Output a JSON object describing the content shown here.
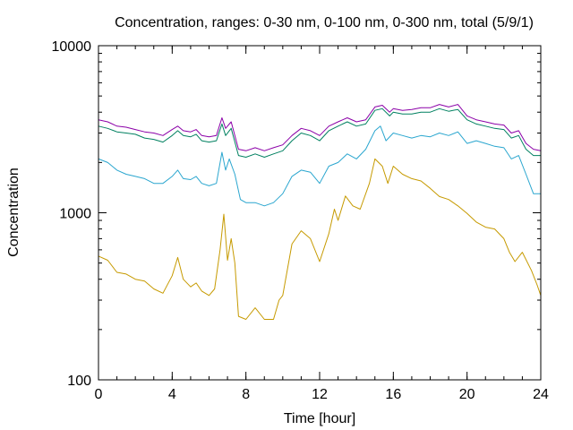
{
  "chart_data": {
    "type": "line",
    "title": "Concentration, ranges: 0-30 nm, 0-100 nm, 0-300 nm, total (5/9/1)",
    "xlabel": "Time [hour]",
    "ylabel": "Concentration",
    "xlim": [
      0,
      24
    ],
    "ylim": [
      100,
      10000
    ],
    "yscale": "log",
    "grid": false,
    "legend": "none",
    "x_ticks": [
      {
        "v": 0,
        "label": "0"
      },
      {
        "v": 4,
        "label": "4"
      },
      {
        "v": 8,
        "label": "8"
      },
      {
        "v": 12,
        "label": "12"
      },
      {
        "v": 16,
        "label": "16"
      },
      {
        "v": 20,
        "label": "20"
      },
      {
        "v": 24,
        "label": "24"
      }
    ],
    "y_ticks": [
      {
        "v": 100,
        "label": "100"
      },
      {
        "v": 1000,
        "label": "1000"
      },
      {
        "v": 10000,
        "label": "10000"
      }
    ],
    "x_minor_step": 1,
    "series": [
      {
        "color": "#c69a00",
        "points": [
          [
            0,
            550
          ],
          [
            0.5,
            520
          ],
          [
            1,
            440
          ],
          [
            1.5,
            430
          ],
          [
            2,
            400
          ],
          [
            2.5,
            390
          ],
          [
            3,
            350
          ],
          [
            3.5,
            330
          ],
          [
            4,
            420
          ],
          [
            4.3,
            540
          ],
          [
            4.6,
            400
          ],
          [
            5,
            360
          ],
          [
            5.3,
            380
          ],
          [
            5.6,
            340
          ],
          [
            6,
            320
          ],
          [
            6.3,
            350
          ],
          [
            6.6,
            600
          ],
          [
            6.8,
            980
          ],
          [
            7,
            520
          ],
          [
            7.2,
            700
          ],
          [
            7.4,
            500
          ],
          [
            7.6,
            240
          ],
          [
            8,
            230
          ],
          [
            8.5,
            270
          ],
          [
            9,
            230
          ],
          [
            9.5,
            230
          ],
          [
            9.8,
            300
          ],
          [
            10,
            320
          ],
          [
            10.5,
            650
          ],
          [
            11,
            780
          ],
          [
            11.5,
            700
          ],
          [
            12,
            510
          ],
          [
            12.5,
            750
          ],
          [
            12.8,
            1050
          ],
          [
            13,
            900
          ],
          [
            13.4,
            1260
          ],
          [
            13.8,
            1100
          ],
          [
            14.2,
            1050
          ],
          [
            14.7,
            1500
          ],
          [
            15,
            2100
          ],
          [
            15.4,
            1900
          ],
          [
            15.7,
            1500
          ],
          [
            16,
            1900
          ],
          [
            16.5,
            1700
          ],
          [
            17,
            1600
          ],
          [
            17.5,
            1550
          ],
          [
            18,
            1400
          ],
          [
            18.5,
            1250
          ],
          [
            19,
            1200
          ],
          [
            19.5,
            1100
          ],
          [
            20,
            990
          ],
          [
            20.5,
            880
          ],
          [
            21,
            820
          ],
          [
            21.5,
            800
          ],
          [
            22,
            700
          ],
          [
            22.3,
            580
          ],
          [
            22.6,
            510
          ],
          [
            23,
            580
          ],
          [
            23.5,
            450
          ],
          [
            23.8,
            370
          ],
          [
            24,
            320
          ]
        ]
      },
      {
        "color": "#2aa6cf",
        "points": [
          [
            0,
            2100
          ],
          [
            0.5,
            2000
          ],
          [
            1,
            1800
          ],
          [
            1.5,
            1700
          ],
          [
            2,
            1650
          ],
          [
            2.5,
            1600
          ],
          [
            3,
            1500
          ],
          [
            3.5,
            1500
          ],
          [
            4,
            1650
          ],
          [
            4.3,
            1800
          ],
          [
            4.6,
            1600
          ],
          [
            5,
            1580
          ],
          [
            5.3,
            1650
          ],
          [
            5.6,
            1500
          ],
          [
            6,
            1450
          ],
          [
            6.4,
            1500
          ],
          [
            6.7,
            2300
          ],
          [
            6.9,
            1800
          ],
          [
            7.1,
            2100
          ],
          [
            7.4,
            1700
          ],
          [
            7.7,
            1200
          ],
          [
            8,
            1150
          ],
          [
            8.5,
            1150
          ],
          [
            9,
            1100
          ],
          [
            9.5,
            1150
          ],
          [
            10,
            1300
          ],
          [
            10.5,
            1650
          ],
          [
            11,
            1800
          ],
          [
            11.5,
            1750
          ],
          [
            12,
            1500
          ],
          [
            12.5,
            1900
          ],
          [
            13,
            2000
          ],
          [
            13.5,
            2250
          ],
          [
            14,
            2100
          ],
          [
            14.5,
            2400
          ],
          [
            15,
            3100
          ],
          [
            15.3,
            3300
          ],
          [
            15.6,
            2700
          ],
          [
            16,
            3000
          ],
          [
            16.5,
            2900
          ],
          [
            17,
            2800
          ],
          [
            17.5,
            2900
          ],
          [
            18,
            2850
          ],
          [
            18.5,
            3000
          ],
          [
            19,
            2900
          ],
          [
            19.5,
            3050
          ],
          [
            20,
            2600
          ],
          [
            20.5,
            2700
          ],
          [
            21,
            2600
          ],
          [
            21.5,
            2500
          ],
          [
            22,
            2450
          ],
          [
            22.4,
            2100
          ],
          [
            22.8,
            2200
          ],
          [
            23.2,
            1700
          ],
          [
            23.6,
            1300
          ],
          [
            24,
            1300
          ]
        ]
      },
      {
        "color": "#008060",
        "points": [
          [
            0,
            3300
          ],
          [
            0.5,
            3200
          ],
          [
            1,
            3050
          ],
          [
            1.5,
            3000
          ],
          [
            2,
            2950
          ],
          [
            2.5,
            2800
          ],
          [
            3,
            2750
          ],
          [
            3.5,
            2650
          ],
          [
            4,
            2900
          ],
          [
            4.3,
            3100
          ],
          [
            4.6,
            2900
          ],
          [
            5,
            2850
          ],
          [
            5.3,
            2950
          ],
          [
            5.6,
            2700
          ],
          [
            6,
            2650
          ],
          [
            6.4,
            2700
          ],
          [
            6.7,
            3400
          ],
          [
            6.9,
            2900
          ],
          [
            7.2,
            3200
          ],
          [
            7.6,
            2200
          ],
          [
            8,
            2150
          ],
          [
            8.5,
            2250
          ],
          [
            9,
            2150
          ],
          [
            9.5,
            2250
          ],
          [
            10,
            2350
          ],
          [
            10.5,
            2700
          ],
          [
            11,
            3000
          ],
          [
            11.5,
            2900
          ],
          [
            12,
            2700
          ],
          [
            12.5,
            3100
          ],
          [
            13,
            3300
          ],
          [
            13.5,
            3500
          ],
          [
            14,
            3300
          ],
          [
            14.5,
            3400
          ],
          [
            15,
            4100
          ],
          [
            15.4,
            4200
          ],
          [
            15.8,
            3800
          ],
          [
            16,
            4000
          ],
          [
            16.5,
            3900
          ],
          [
            17,
            3900
          ],
          [
            17.5,
            4000
          ],
          [
            18,
            4000
          ],
          [
            18.5,
            4200
          ],
          [
            19,
            4050
          ],
          [
            19.5,
            4150
          ],
          [
            20,
            3600
          ],
          [
            20.5,
            3400
          ],
          [
            21,
            3300
          ],
          [
            21.5,
            3200
          ],
          [
            22,
            3150
          ],
          [
            22.4,
            2800
          ],
          [
            22.8,
            2900
          ],
          [
            23.2,
            2400
          ],
          [
            23.6,
            2200
          ],
          [
            24,
            2200
          ]
        ]
      },
      {
        "color": "#8b00a8",
        "points": [
          [
            0,
            3600
          ],
          [
            0.5,
            3500
          ],
          [
            1,
            3300
          ],
          [
            1.5,
            3250
          ],
          [
            2,
            3150
          ],
          [
            2.5,
            3050
          ],
          [
            3,
            3000
          ],
          [
            3.5,
            2900
          ],
          [
            4,
            3150
          ],
          [
            4.3,
            3300
          ],
          [
            4.6,
            3100
          ],
          [
            5,
            3050
          ],
          [
            5.3,
            3150
          ],
          [
            5.6,
            2900
          ],
          [
            6,
            2850
          ],
          [
            6.4,
            2900
          ],
          [
            6.7,
            3700
          ],
          [
            6.9,
            3200
          ],
          [
            7.2,
            3500
          ],
          [
            7.6,
            2400
          ],
          [
            8,
            2350
          ],
          [
            8.5,
            2450
          ],
          [
            9,
            2350
          ],
          [
            9.5,
            2450
          ],
          [
            10,
            2550
          ],
          [
            10.5,
            2900
          ],
          [
            11,
            3200
          ],
          [
            11.5,
            3100
          ],
          [
            12,
            2900
          ],
          [
            12.5,
            3300
          ],
          [
            13,
            3500
          ],
          [
            13.5,
            3700
          ],
          [
            14,
            3500
          ],
          [
            14.5,
            3600
          ],
          [
            15,
            4300
          ],
          [
            15.4,
            4400
          ],
          [
            15.8,
            4000
          ],
          [
            16,
            4200
          ],
          [
            16.5,
            4100
          ],
          [
            17,
            4150
          ],
          [
            17.5,
            4250
          ],
          [
            18,
            4250
          ],
          [
            18.5,
            4450
          ],
          [
            19,
            4300
          ],
          [
            19.5,
            4450
          ],
          [
            20,
            3800
          ],
          [
            20.5,
            3600
          ],
          [
            21,
            3500
          ],
          [
            21.5,
            3400
          ],
          [
            22,
            3350
          ],
          [
            22.4,
            3000
          ],
          [
            22.8,
            3100
          ],
          [
            23.2,
            2600
          ],
          [
            23.6,
            2400
          ],
          [
            24,
            2350
          ]
        ]
      }
    ]
  }
}
